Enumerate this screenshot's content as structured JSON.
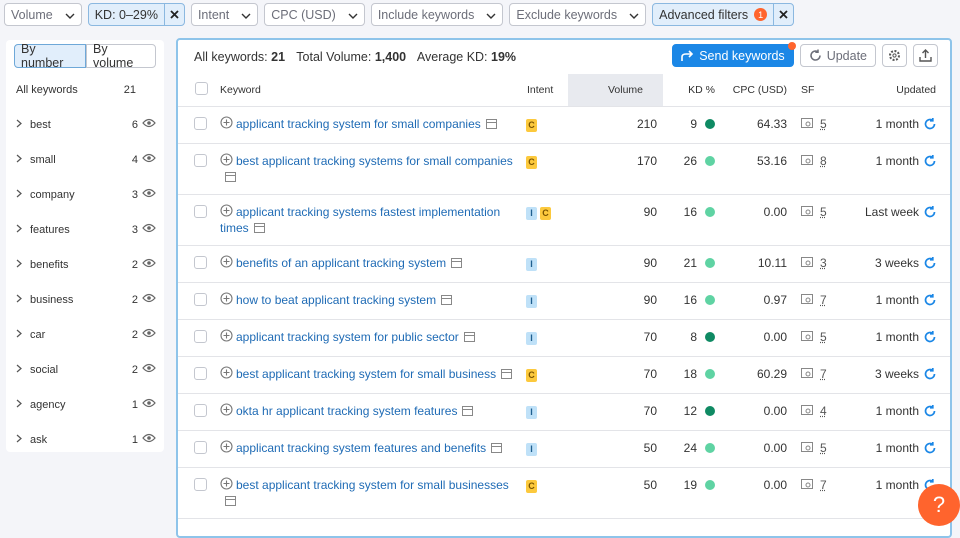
{
  "filters": {
    "items": [
      "Volume",
      "Intent",
      "CPC (USD)",
      "Include keywords",
      "Exclude keywords"
    ],
    "active": [
      "KD: 0–29%",
      "Advanced filters"
    ],
    "advanced_badge": "1"
  },
  "sidebar": {
    "tabs": [
      "By number",
      "By volume"
    ],
    "header": {
      "label": "All keywords",
      "count": "21"
    },
    "groups": [
      {
        "name": "best",
        "count": "6"
      },
      {
        "name": "small",
        "count": "4"
      },
      {
        "name": "company",
        "count": "3"
      },
      {
        "name": "features",
        "count": "3"
      },
      {
        "name": "benefits",
        "count": "2"
      },
      {
        "name": "business",
        "count": "2"
      },
      {
        "name": "car",
        "count": "2"
      },
      {
        "name": "social",
        "count": "2"
      },
      {
        "name": "agency",
        "count": "1"
      },
      {
        "name": "ask",
        "count": "1"
      }
    ]
  },
  "summary": {
    "all_label": "All keywords:",
    "all_value": "21",
    "volume_label": "Total Volume:",
    "volume_value": "1,400",
    "kd_label": "Average KD:",
    "kd_value": "19%"
  },
  "buttons": {
    "send": "Send keywords",
    "update": "Update"
  },
  "table": {
    "headers": [
      "Keyword",
      "Intent",
      "Volume",
      "KD %",
      "CPC (USD)",
      "SF",
      "Updated"
    ],
    "rows": [
      {
        "keyword": "applicant tracking system for small companies",
        "intent": [
          "C"
        ],
        "volume": "210",
        "kd": "9",
        "kd_color": "#0f8a63",
        "cpc": "64.33",
        "sf": "5",
        "updated": "1 month"
      },
      {
        "keyword": "best applicant tracking systems for small companies",
        "intent": [
          "C"
        ],
        "volume": "170",
        "kd": "26",
        "kd_color": "#5fd3a3",
        "cpc": "53.16",
        "sf": "8",
        "updated": "1 month"
      },
      {
        "keyword": "applicant tracking systems fastest implementation times",
        "intent": [
          "I",
          "C"
        ],
        "volume": "90",
        "kd": "16",
        "kd_color": "#5fd3a3",
        "cpc": "0.00",
        "sf": "5",
        "updated": "Last week"
      },
      {
        "keyword": "benefits of an applicant tracking system",
        "intent": [
          "I"
        ],
        "volume": "90",
        "kd": "21",
        "kd_color": "#5fd3a3",
        "cpc": "10.11",
        "sf": "3",
        "updated": "3 weeks"
      },
      {
        "keyword": "how to beat applicant tracking system",
        "intent": [
          "I"
        ],
        "volume": "90",
        "kd": "16",
        "kd_color": "#5fd3a3",
        "cpc": "0.97",
        "sf": "7",
        "updated": "1 month"
      },
      {
        "keyword": "applicant tracking system for public sector",
        "intent": [
          "I"
        ],
        "volume": "70",
        "kd": "8",
        "kd_color": "#0f8a63",
        "cpc": "0.00",
        "sf": "5",
        "updated": "1 month"
      },
      {
        "keyword": "best applicant tracking system for small business",
        "intent": [
          "C"
        ],
        "volume": "70",
        "kd": "18",
        "kd_color": "#5fd3a3",
        "cpc": "60.29",
        "sf": "7",
        "updated": "3 weeks"
      },
      {
        "keyword": "okta hr applicant tracking system features",
        "intent": [
          "I"
        ],
        "volume": "70",
        "kd": "12",
        "kd_color": "#0f8a63",
        "cpc": "0.00",
        "sf": "4",
        "updated": "1 month"
      },
      {
        "keyword": "applicant tracking system features and benefits",
        "intent": [
          "I"
        ],
        "volume": "50",
        "kd": "24",
        "kd_color": "#5fd3a3",
        "cpc": "0.00",
        "sf": "5",
        "updated": "1 month"
      },
      {
        "keyword": "best applicant tracking system for small businesses",
        "intent": [
          "C"
        ],
        "volume": "50",
        "kd": "19",
        "kd_color": "#5fd3a3",
        "cpc": "0.00",
        "sf": "7",
        "updated": "1 month"
      }
    ]
  },
  "help": "?"
}
